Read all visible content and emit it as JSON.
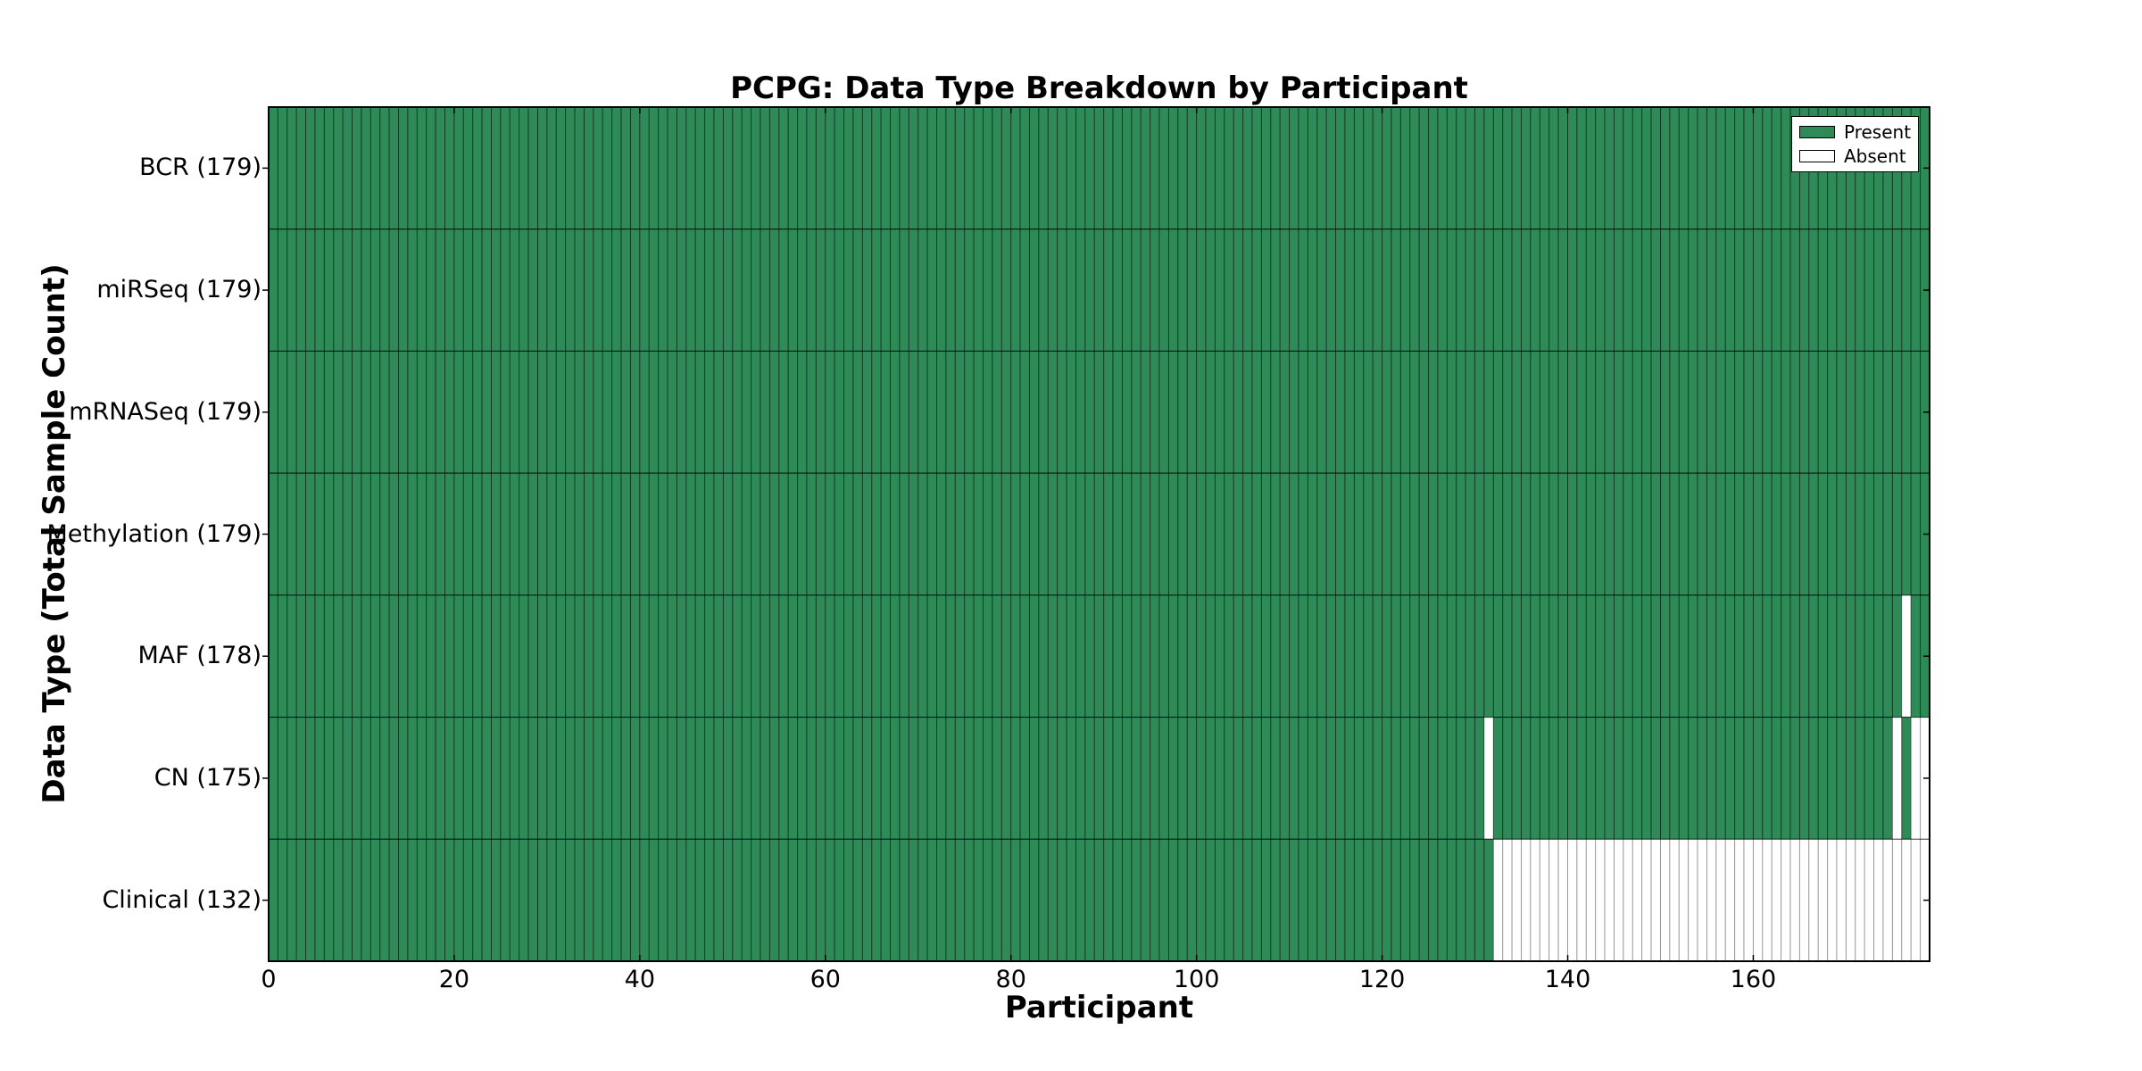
{
  "figure": {
    "background": "#ffffff"
  },
  "chart_data": {
    "type": "heatmap",
    "title": "PCPG: Data Type Breakdown by Participant",
    "xlabel": "Participant",
    "ylabel": "Data Type (Total Sample Count)",
    "n_participants": 179,
    "xlim": [
      0,
      179
    ],
    "x_ticks": [
      0,
      20,
      40,
      60,
      80,
      100,
      120,
      140,
      160
    ],
    "grid": false,
    "legend_position": "upper right",
    "colors": {
      "present": "#2e8b57",
      "absent": "#ffffff",
      "present_edge": "rgba(0,0,0,0.48)",
      "absent_edge": "rgba(0,0,0,0.30)"
    },
    "legend": [
      {
        "label": "Present",
        "color": "#2e8b57"
      },
      {
        "label": "Absent",
        "color": "#ffffff"
      }
    ],
    "rows": [
      {
        "label": "BCR (179)",
        "present_count": 179,
        "absent_ranges": []
      },
      {
        "label": "miRSeq (179)",
        "present_count": 179,
        "absent_ranges": []
      },
      {
        "label": "mRNASeq (179)",
        "present_count": 179,
        "absent_ranges": []
      },
      {
        "label": "Methylation (179)",
        "present_count": 179,
        "absent_ranges": []
      },
      {
        "label": "MAF (178)",
        "present_count": 178,
        "absent_ranges": [
          [
            176,
            176
          ]
        ]
      },
      {
        "label": "CN (175)",
        "present_count": 175,
        "absent_ranges": [
          [
            131,
            131
          ],
          [
            175,
            175
          ],
          [
            177,
            178
          ]
        ]
      },
      {
        "label": "Clinical (132)",
        "present_count": 132,
        "absent_ranges": [
          [
            132,
            178
          ]
        ]
      }
    ]
  }
}
